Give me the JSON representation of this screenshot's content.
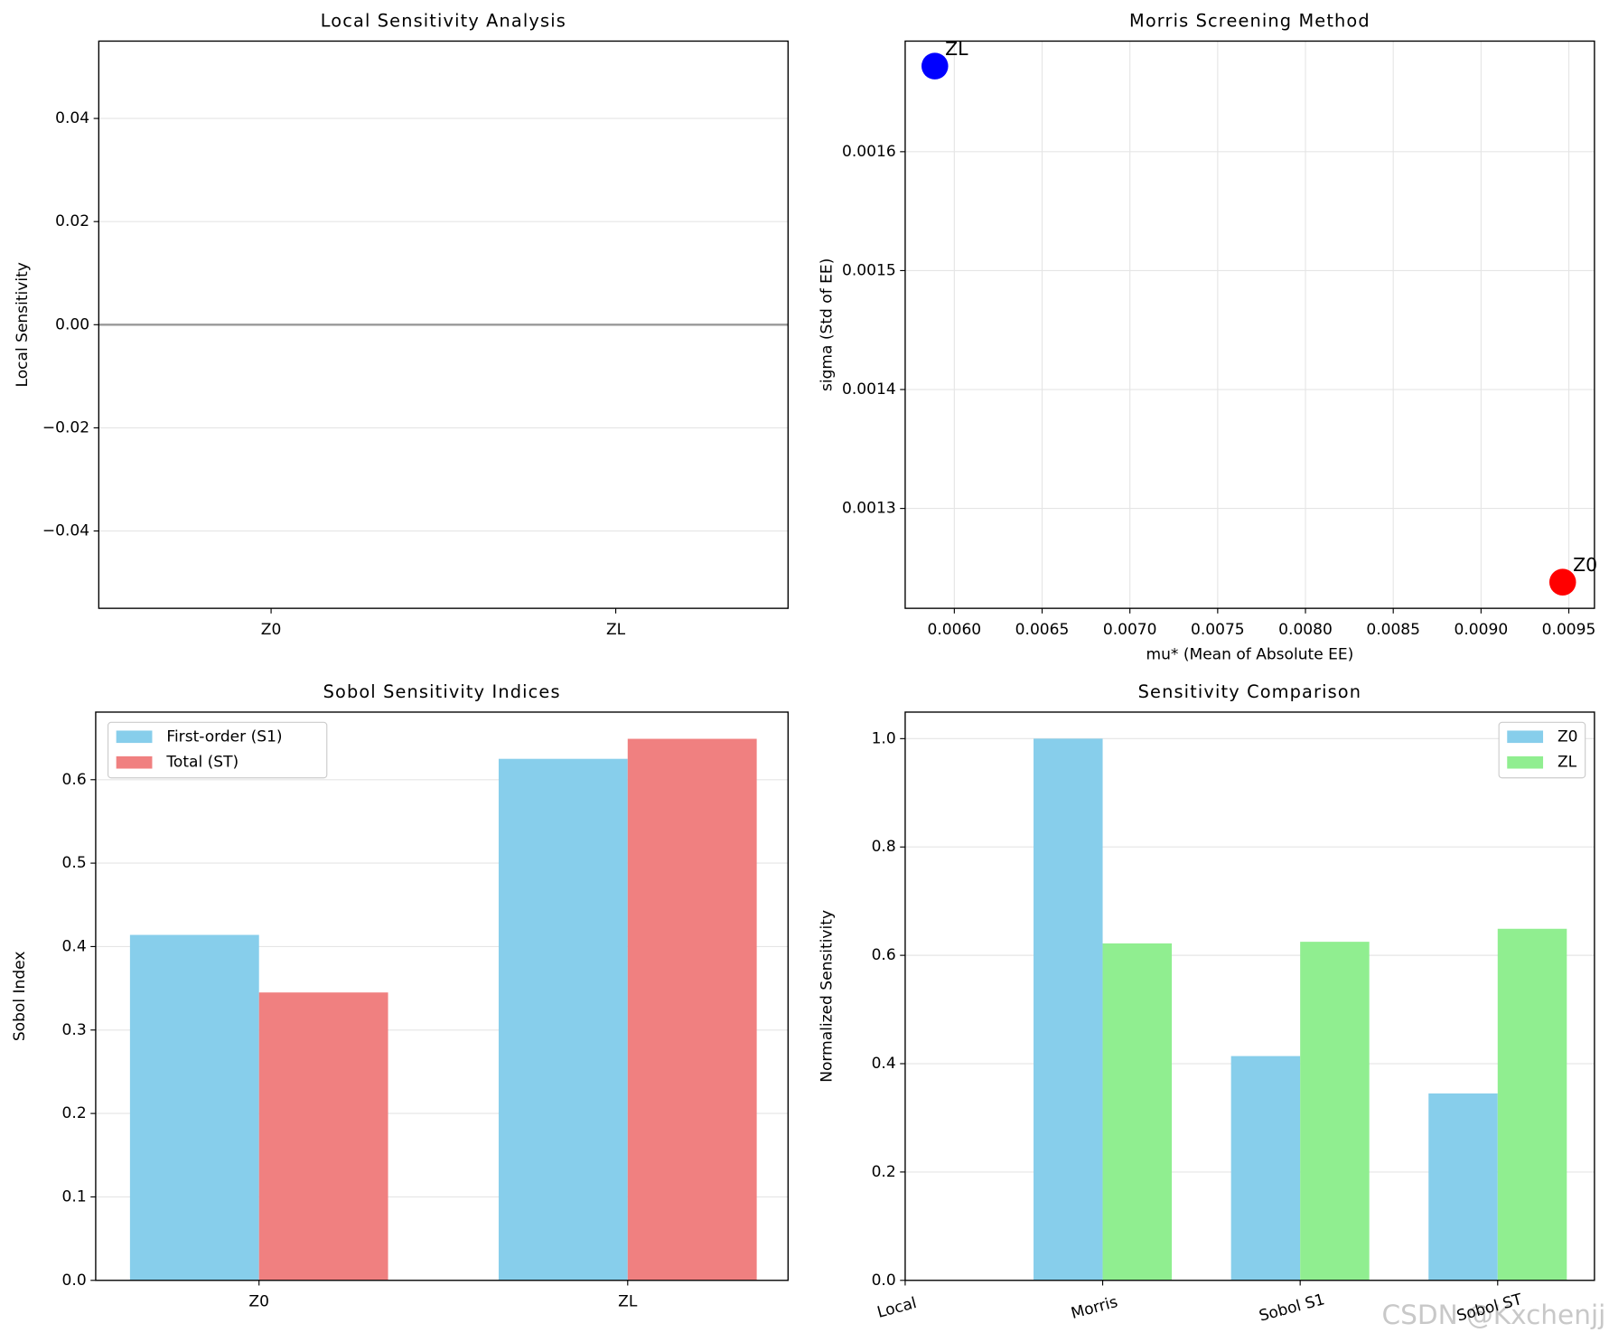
{
  "chart_data": [
    {
      "type": "bar",
      "title": "Local Sensitivity Analysis",
      "ylabel": "Local Sensitivity",
      "categories": [
        "Z0",
        "ZL"
      ],
      "values": [
        0,
        0
      ],
      "color": "#87ceeb",
      "ylim": [
        -0.055,
        0.055
      ],
      "yticks": [
        {
          "value": -0.04,
          "label": "−0.04"
        },
        {
          "value": -0.02,
          "label": "−0.02"
        },
        {
          "value": 0,
          "label": "0.00"
        },
        0.02,
        0.04
      ],
      "axhline": {
        "y": 0,
        "color": "#999999"
      },
      "grid": "y"
    },
    {
      "type": "scatter",
      "title": "Morris Screening Method",
      "xlabel": "mu* (Mean of Absolute EE)",
      "ylabel": "sigma (Std of EE)",
      "points": [
        {
          "label": "Z0",
          "x": 0.009465,
          "y": 0.001238,
          "color": "#ff0000"
        },
        {
          "label": "ZL",
          "x": 0.005889,
          "y": 0.001672,
          "color": "#0000ff"
        }
      ],
      "xlim": [
        0.00572,
        0.009646
      ],
      "ylim": [
        0.001216,
        0.001693
      ],
      "xticks": [
        {
          "value": 0.006,
          "label": "0.0060"
        },
        0.0065,
        {
          "value": 0.007,
          "label": "0.0070"
        },
        0.0075,
        {
          "value": 0.008,
          "label": "0.0080"
        },
        0.0085,
        {
          "value": 0.009,
          "label": "0.0090"
        },
        0.0095
      ],
      "yticks": [
        0.0013,
        0.0014,
        0.0015,
        0.0016
      ],
      "grid": "both"
    },
    {
      "type": "grouped_bar",
      "title": "Sobol Sensitivity Indices",
      "ylabel": "Sobol Index",
      "categories": [
        "Z0",
        "ZL"
      ],
      "series": [
        {
          "name": "First-order (S1)",
          "color": "#87ceeb",
          "values": [
            0.414,
            0.625
          ]
        },
        {
          "name": "Total (ST)",
          "color": "#f08080",
          "values": [
            0.345,
            0.649
          ]
        }
      ],
      "ylim": [
        0,
        0.681
      ],
      "yticks": [
        {
          "value": 0,
          "label": "0.0"
        },
        0.1,
        0.2,
        0.3,
        0.4,
        0.5,
        0.6
      ],
      "grid": "y",
      "legend": "upper left"
    },
    {
      "type": "grouped_bar",
      "title": "Sensitivity Comparison",
      "ylabel": "Normalized Sensitivity",
      "categories": [
        "Local",
        "Morris",
        "Sobol S1",
        "Sobol ST"
      ],
      "series": [
        {
          "name": "Z0",
          "color": "#87ceeb",
          "values": [
            0,
            1.0,
            0.414,
            0.345
          ]
        },
        {
          "name": "ZL",
          "color": "#90ee90",
          "values": [
            0,
            0.622,
            0.625,
            0.649
          ]
        }
      ],
      "ylim": [
        0,
        1.049
      ],
      "yticks": [
        {
          "value": 0,
          "label": "0.0"
        },
        0.2,
        0.4,
        0.6,
        0.8,
        {
          "value": 1,
          "label": "1.0"
        }
      ],
      "grid": "y",
      "legend": "upper right",
      "xtick_rotation": 15
    }
  ],
  "watermark": "CSDN @Kxchenjj"
}
